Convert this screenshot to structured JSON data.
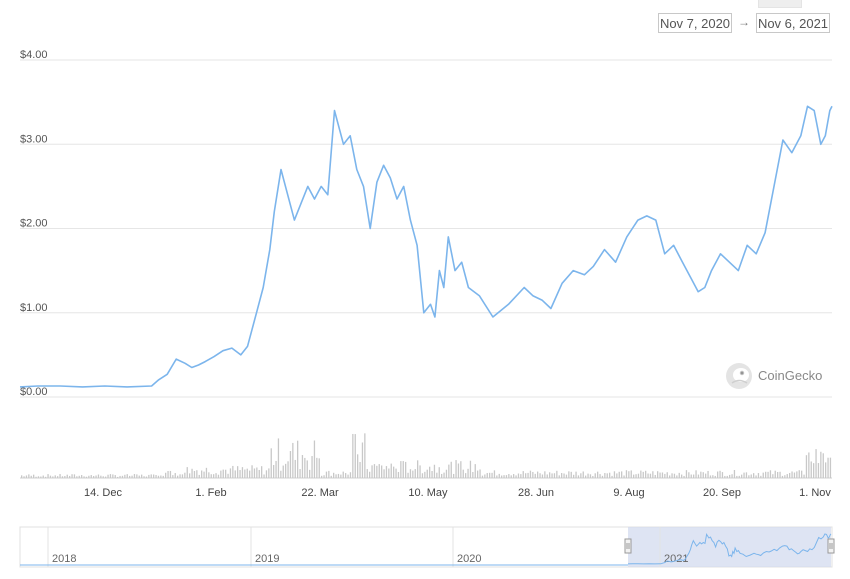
{
  "range": {
    "from": "Nov 7, 2020",
    "to": "Nov 6, 2021",
    "arrow": "→"
  },
  "watermark": "CoinGecko",
  "colors": {
    "line": "#7cb5ec",
    "grid": "#e6e6e6",
    "volume": "#c8c8c8",
    "navigator_mask": "#d3dbef",
    "navigator_line": "#7cb5ec"
  },
  "chart_data": {
    "type": "line",
    "title": "",
    "ylabel": "",
    "xlabel": "",
    "x_range": [
      "2020-11-07",
      "2021-11-06"
    ],
    "ylim": [
      0,
      4
    ],
    "y_ticks": [
      "$0.00",
      "$1.00",
      "$2.00",
      "$3.00",
      "$4.00"
    ],
    "x_ticks": [
      "14. Dec",
      "1. Feb",
      "22. Mar",
      "10. May",
      "28. Jun",
      "9. Aug",
      "20. Sep",
      "1. Nov"
    ],
    "grid": true,
    "series": [
      {
        "x": [
          "2020-11-07",
          "2020-11-15",
          "2020-11-25",
          "2020-12-05",
          "2020-12-15",
          "2020-12-25",
          "2021-01-05",
          "2021-01-08",
          "2021-01-12",
          "2021-01-16",
          "2021-01-20",
          "2021-01-23",
          "2021-01-26",
          "2021-01-29",
          "2021-02-02",
          "2021-02-06",
          "2021-02-10",
          "2021-02-14",
          "2021-02-17",
          "2021-02-21",
          "2021-02-24",
          "2021-02-27",
          "2021-03-01",
          "2021-03-04",
          "2021-03-07",
          "2021-03-10",
          "2021-03-13",
          "2021-03-16",
          "2021-03-19",
          "2021-03-22",
          "2021-03-25",
          "2021-03-28",
          "2021-04-01",
          "2021-04-04",
          "2021-04-07",
          "2021-04-10",
          "2021-04-13",
          "2021-04-16",
          "2021-04-19",
          "2021-04-22",
          "2021-04-25",
          "2021-04-28",
          "2021-05-01",
          "2021-05-04",
          "2021-05-07",
          "2021-05-10",
          "2021-05-12",
          "2021-05-14",
          "2021-05-16",
          "2021-05-18",
          "2021-05-21",
          "2021-05-24",
          "2021-05-27",
          "2021-06-01",
          "2021-06-07",
          "2021-06-14",
          "2021-06-21",
          "2021-06-25",
          "2021-06-29",
          "2021-07-03",
          "2021-07-08",
          "2021-07-13",
          "2021-07-18",
          "2021-07-22",
          "2021-07-27",
          "2021-08-01",
          "2021-08-06",
          "2021-08-11",
          "2021-08-15",
          "2021-08-19",
          "2021-08-23",
          "2021-08-27",
          "2021-08-31",
          "2021-09-04",
          "2021-09-07",
          "2021-09-10",
          "2021-09-13",
          "2021-09-17",
          "2021-09-21",
          "2021-09-25",
          "2021-09-29",
          "2021-10-03",
          "2021-10-07",
          "2021-10-11",
          "2021-10-15",
          "2021-10-19",
          "2021-10-23",
          "2021-10-26",
          "2021-10-29",
          "2021-11-01",
          "2021-11-03",
          "2021-11-05",
          "2021-11-06"
        ],
        "y": [
          0.12,
          0.13,
          0.13,
          0.12,
          0.13,
          0.12,
          0.13,
          0.2,
          0.27,
          0.45,
          0.4,
          0.35,
          0.38,
          0.42,
          0.48,
          0.55,
          0.58,
          0.5,
          0.6,
          1.0,
          1.3,
          1.75,
          2.2,
          2.7,
          2.4,
          2.1,
          2.3,
          2.5,
          2.35,
          2.5,
          2.4,
          3.4,
          3.0,
          3.1,
          2.7,
          2.5,
          2.0,
          2.55,
          2.75,
          2.6,
          2.35,
          2.5,
          2.1,
          1.8,
          1.0,
          1.1,
          0.95,
          1.5,
          1.3,
          1.9,
          1.5,
          1.6,
          1.3,
          1.2,
          0.95,
          1.1,
          1.3,
          1.2,
          1.15,
          1.05,
          1.35,
          1.5,
          1.45,
          1.55,
          1.75,
          1.6,
          1.9,
          2.1,
          2.15,
          2.1,
          1.7,
          1.8,
          1.6,
          1.4,
          1.25,
          1.3,
          1.5,
          1.7,
          1.6,
          1.5,
          1.8,
          1.7,
          1.95,
          2.5,
          3.05,
          2.9,
          3.1,
          3.45,
          3.4,
          3.0,
          3.1,
          3.4,
          3.45
        ]
      }
    ],
    "volume_note": "",
    "navigator": {
      "year_labels": [
        "2018",
        "2019",
        "2020",
        "2021"
      ]
    }
  }
}
